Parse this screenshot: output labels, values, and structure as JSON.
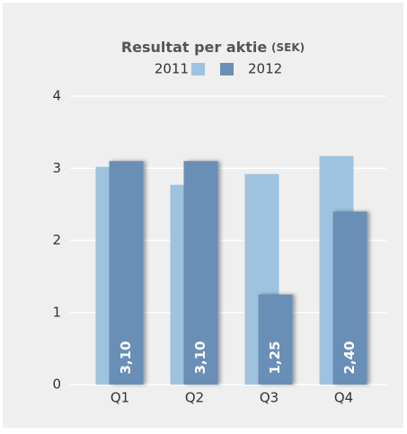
{
  "chart_data": {
    "type": "bar",
    "title": "Resultat per aktie",
    "title_unit": "(SEK)",
    "categories": [
      "Q1",
      "Q2",
      "Q3",
      "Q4"
    ],
    "series": [
      {
        "name": "2011",
        "color": "#9dc3e0",
        "values": [
          3.02,
          2.77,
          2.92,
          3.17
        ]
      },
      {
        "name": "2012",
        "color": "#6a8fb6",
        "values": [
          3.1,
          3.1,
          1.25,
          2.4
        ],
        "value_labels": [
          "3,10",
          "3,10",
          "1,25",
          "2,40"
        ]
      }
    ],
    "ylim": [
      0,
      4
    ],
    "yticks": [
      0,
      1,
      2,
      3,
      4
    ],
    "grid": true
  }
}
